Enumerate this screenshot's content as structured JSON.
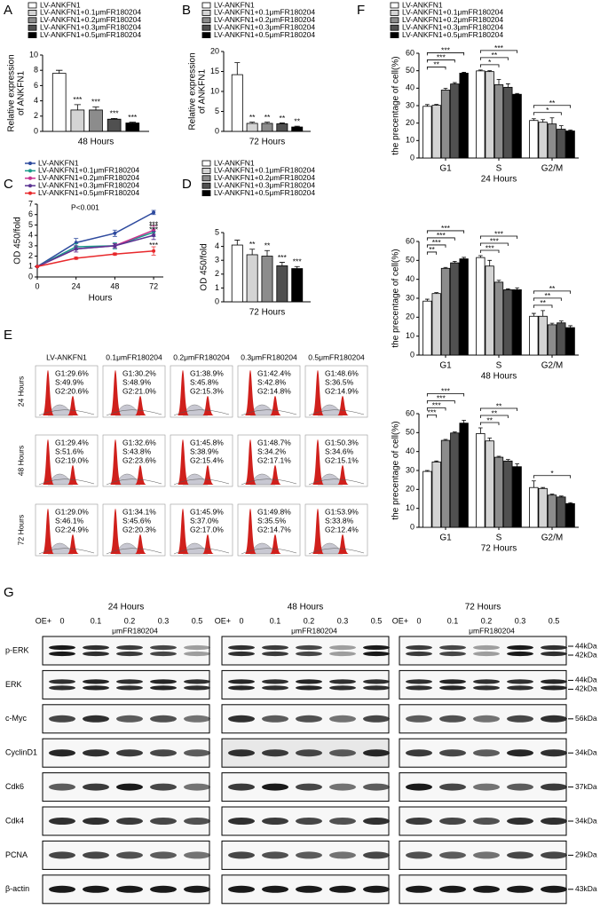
{
  "chart_data": [
    {
      "panel": "A",
      "type": "bar",
      "ylabel": [
        "Relative expression",
        "of ANKFN1"
      ],
      "categories": [
        "48 Hours"
      ],
      "ylim": [
        0,
        10
      ],
      "yticks": [
        0,
        2,
        4,
        6,
        8,
        10
      ],
      "series": [
        {
          "name": "LV-ANKFN1",
          "color": "#ffffff",
          "values": [
            7.6
          ],
          "errors": [
            0.4
          ]
        },
        {
          "name": "LV-ANKFN1+0.1μmFR180204",
          "color": "#d4d4d4",
          "values": [
            2.8
          ],
          "errors": [
            0.7
          ],
          "annotation": "***"
        },
        {
          "name": "LV-ANKFN1+0.2μmFR180204",
          "color": "#8c8c8c",
          "values": [
            2.8
          ],
          "errors": [
            0.4
          ],
          "annotation": "***"
        },
        {
          "name": "LV-ANKFN1+0.3μmFR180204",
          "color": "#505050",
          "values": [
            1.6
          ],
          "errors": [
            0.1
          ],
          "annotation": "***"
        },
        {
          "name": "LV-ANKFN1+0.5μmFR180204",
          "color": "#000000",
          "values": [
            1.1
          ],
          "errors": [
            0.1
          ],
          "annotation": "***"
        }
      ]
    },
    {
      "panel": "B",
      "type": "bar",
      "ylabel": [
        "Relative expression",
        "of ANKFN1"
      ],
      "categories": [
        "72 Hours"
      ],
      "ylim": [
        0,
        20
      ],
      "yticks": [
        0,
        5,
        10,
        15,
        20
      ],
      "series": [
        {
          "name": "LV-ANKFN1",
          "color": "#ffffff",
          "values": [
            14.2
          ],
          "errors": [
            3.0
          ]
        },
        {
          "name": "LV-ANKFN1+0.1μmFR180204",
          "color": "#d4d4d4",
          "values": [
            2.0
          ],
          "errors": [
            0.3
          ],
          "annotation": "**"
        },
        {
          "name": "LV-ANKFN1+0.2μmFR180204",
          "color": "#8c8c8c",
          "values": [
            2.0
          ],
          "errors": [
            0.3
          ],
          "annotation": "**"
        },
        {
          "name": "LV-ANKFN1+0.3μmFR180204",
          "color": "#505050",
          "values": [
            1.9
          ],
          "errors": [
            0.2
          ],
          "annotation": "**"
        },
        {
          "name": "LV-ANKFN1+0.5μmFR180204",
          "color": "#000000",
          "values": [
            1.1
          ],
          "errors": [
            0.2
          ],
          "annotation": "**"
        }
      ]
    },
    {
      "panel": "C",
      "type": "line",
      "ylabel": [
        "OD 450/fold"
      ],
      "xlabel": "Hours",
      "note": "P<0.001",
      "x": [
        0,
        24,
        48,
        72
      ],
      "xlim": [
        0,
        78
      ],
      "xticks": [
        0,
        24,
        48,
        72
      ],
      "ylim": [
        0,
        7
      ],
      "yticks": [
        0,
        1,
        2,
        3,
        4,
        5,
        6,
        7
      ],
      "series": [
        {
          "name": "LV-ANKFN1",
          "color": "#2e4a9e",
          "values": [
            1,
            3.3,
            4.2,
            6.2
          ],
          "errors": [
            0,
            0.4,
            0.3,
            0.2
          ]
        },
        {
          "name": "LV-ANKFN1+0.1μmFR180204",
          "color": "#1a9a8a",
          "values": [
            1,
            2.9,
            3.0,
            4.3
          ],
          "errors": [
            0,
            0.3,
            0.3,
            0.4
          ],
          "annotation": "***"
        },
        {
          "name": "LV-ANKFN1+0.2μmFR180204",
          "color": "#c8338e",
          "values": [
            1,
            2.7,
            3.0,
            4.5
          ],
          "errors": [
            0,
            0.3,
            0.2,
            0.4
          ],
          "annotation": "***"
        },
        {
          "name": "LV-ANKFN1+0.3μmFR180204",
          "color": "#5a3392",
          "values": [
            1,
            2.7,
            3.0,
            4.0
          ],
          "errors": [
            0,
            0.3,
            0.2,
            0.4
          ],
          "annotation": "***"
        },
        {
          "name": "LV-ANKFN1+0.5μmFR180204",
          "color": "#e8282b",
          "values": [
            1,
            1.8,
            2.2,
            2.5
          ],
          "errors": [
            0,
            0.1,
            0.1,
            0.4
          ],
          "annotation": "***"
        }
      ]
    },
    {
      "panel": "D",
      "type": "bar",
      "ylabel": [
        "OD 450/fold"
      ],
      "categories": [
        "72 Hours"
      ],
      "ylim": [
        0,
        5
      ],
      "yticks": [
        0,
        1,
        2,
        3,
        4,
        5
      ],
      "series": [
        {
          "name": "LV-ANKFN1",
          "color": "#ffffff",
          "values": [
            4.1
          ],
          "errors": [
            0.35
          ]
        },
        {
          "name": "LV-ANKFN1+0.1μmFR180204",
          "color": "#d4d4d4",
          "values": [
            3.4
          ],
          "errors": [
            0.4
          ],
          "annotation": "**"
        },
        {
          "name": "LV-ANKFN1+0.2μmFR180204",
          "color": "#8c8c8c",
          "values": [
            3.3
          ],
          "errors": [
            0.4
          ],
          "annotation": "**"
        },
        {
          "name": "LV-ANKFN1+0.3μmFR180204",
          "color": "#505050",
          "values": [
            2.6
          ],
          "errors": [
            0.25
          ],
          "annotation": "***"
        },
        {
          "name": "LV-ANKFN1+0.5μmFR180204",
          "color": "#000000",
          "values": [
            2.4
          ],
          "errors": [
            0.15
          ],
          "annotation": "***"
        }
      ]
    },
    {
      "panel": "F",
      "type": "bar",
      "ylabel": [
        "the precentage of cell(%)"
      ],
      "xlabel": "24 Hours",
      "categories": [
        "G1",
        "S",
        "G2/M"
      ],
      "ylim": [
        0,
        60
      ],
      "yticks": [
        0,
        10,
        20,
        30,
        40,
        50,
        60
      ],
      "significance": [
        [
          "***",
          "***",
          "**"
        ],
        [
          "***",
          "**",
          "*"
        ],
        [
          "**",
          "*"
        ]
      ],
      "series": [
        {
          "name": "LV-ANKFN1",
          "color": "#ffffff",
          "values": [
            29.6,
            49.9,
            21.5
          ],
          "errors": [
            1,
            0.5,
            1
          ]
        },
        {
          "name": "LV-ANKFN1+0.1μmFR180204",
          "color": "#d4d4d4",
          "values": [
            30.2,
            49.5,
            20.5
          ],
          "errors": [
            0.5,
            0.5,
            1.5
          ]
        },
        {
          "name": "LV-ANKFN1+0.2μmFR180204",
          "color": "#8c8c8c",
          "values": [
            38.9,
            42,
            19.5
          ],
          "errors": [
            1,
            3,
            3.5
          ]
        },
        {
          "name": "LV-ANKFN1+0.3μmFR180204",
          "color": "#505050",
          "values": [
            42.4,
            40.5,
            16.5
          ],
          "errors": [
            0.8,
            2,
            2
          ]
        },
        {
          "name": "LV-ANKFN1+0.5μmFR180204",
          "color": "#000000",
          "values": [
            48.6,
            36.5,
            15.5
          ],
          "errors": [
            0.5,
            0.5,
            0.5
          ]
        }
      ]
    },
    {
      "type": "bar",
      "ylabel": [
        "the precentage of cell(%)"
      ],
      "xlabel": "48 Hours",
      "categories": [
        "G1",
        "S",
        "G2/M"
      ],
      "ylim": [
        0,
        60
      ],
      "yticks": [
        0,
        10,
        20,
        30,
        40,
        50,
        60
      ],
      "significance": [
        [
          "***",
          "***",
          "***",
          "**"
        ],
        [
          "***",
          "***",
          "***"
        ],
        [
          "**",
          "**",
          "**"
        ]
      ],
      "series": [
        {
          "color": "#ffffff",
          "values": [
            28.5,
            51.5,
            20.5
          ],
          "errors": [
            1,
            1,
            1.5
          ]
        },
        {
          "color": "#d4d4d4",
          "values": [
            32.5,
            47,
            20.5
          ],
          "errors": [
            0.5,
            3,
            3
          ]
        },
        {
          "color": "#8c8c8c",
          "values": [
            45.8,
            38.5,
            16
          ],
          "errors": [
            0.5,
            1,
            0.8
          ]
        },
        {
          "color": "#505050",
          "values": [
            48.7,
            34.5,
            17
          ],
          "errors": [
            0.8,
            0.5,
            1
          ]
        },
        {
          "color": "#000000",
          "values": [
            50.8,
            34.5,
            14.5
          ],
          "errors": [
            0.8,
            1,
            1
          ]
        }
      ]
    },
    {
      "type": "bar",
      "ylabel": [
        "the precentage of cell(%)"
      ],
      "xlabel": "72 Hours",
      "categories": [
        "G1",
        "S",
        "G2/M"
      ],
      "ylim": [
        0,
        60
      ],
      "yticks": [
        0,
        10,
        20,
        30,
        40,
        50,
        60
      ],
      "significance": [
        [
          "***",
          "***",
          "***",
          "***"
        ],
        [
          "**",
          "**",
          "**"
        ],
        [
          "*"
        ]
      ],
      "series": [
        {
          "color": "#ffffff",
          "values": [
            29.5,
            49.5,
            21
          ],
          "errors": [
            0.5,
            3,
            3.5
          ]
        },
        {
          "color": "#d4d4d4",
          "values": [
            34.5,
            45.6,
            20.5
          ],
          "errors": [
            0.5,
            1.5,
            0.5
          ]
        },
        {
          "color": "#8c8c8c",
          "values": [
            45.9,
            37,
            17
          ],
          "errors": [
            0.5,
            0.5,
            0.5
          ]
        },
        {
          "color": "#505050",
          "values": [
            49.8,
            35,
            16
          ],
          "errors": [
            0.5,
            0.8,
            0.5
          ]
        },
        {
          "color": "#000000",
          "values": [
            55,
            32,
            12.5
          ],
          "errors": [
            1.5,
            1.5,
            0.5
          ]
        }
      ]
    }
  ],
  "flow": {
    "panel": "E",
    "columns": [
      "LV-ANKFN1",
      "0.1μmFR180204",
      "0.2μmFR180204",
      "0.3μmFR180204",
      "0.5μmFR180204"
    ],
    "rows": [
      {
        "label": "24 Hours",
        "cells": [
          [
            "G1:29.6%",
            "S:49.9%",
            "G2:20.6%"
          ],
          [
            "G1:30.2%",
            "S:48.9%",
            "G2:21.0%"
          ],
          [
            "G1:38.9%",
            "S:45.8%",
            "G2:15.3%"
          ],
          [
            "G1:42.4%",
            "S:42.8%",
            "G2:14.8%"
          ],
          [
            "G1:48.6%",
            "S:36.5%",
            "G2:14.9%"
          ]
        ]
      },
      {
        "label": "48 Hours",
        "cells": [
          [
            "G1:29.4%",
            "S:51.6%",
            "G2:19.0%"
          ],
          [
            "G1:32.6%",
            "S:43.8%",
            "G2:23.6%"
          ],
          [
            "G1:45.8%",
            "S:38.9%",
            "G2:15.4%"
          ],
          [
            "G1:48.7%",
            "S:34.2%",
            "G2:17.1%"
          ],
          [
            "G1:50.3%",
            "S:34.6%",
            "G2:15.1%"
          ]
        ]
      },
      {
        "label": "72 Hours",
        "cells": [
          [
            "G1:29.0%",
            "S:46.1%",
            "G2:24.9%"
          ],
          [
            "G1:34.1%",
            "S:45.6%",
            "G2:20.3%"
          ],
          [
            "G1:45.9%",
            "S:37.0%",
            "G2:17.0%"
          ],
          [
            "G1:49.8%",
            "S:35.5%",
            "G2:14.7%"
          ],
          [
            "G1:53.9%",
            "S:33.8%",
            "G2:12.4%"
          ]
        ]
      }
    ]
  },
  "blot": {
    "panel": "G",
    "times": [
      "24 Hours",
      "48 Hours",
      "72 Hours"
    ],
    "oe": "OE+",
    "doses": [
      "0",
      "0.1",
      "0.2",
      "0.3",
      "0.5"
    ],
    "drug": "μmFR180204",
    "rows": [
      {
        "protein": "p-ERK",
        "kda": [
          "44kDa",
          "42kDa"
        ]
      },
      {
        "protein": "ERK",
        "kda": [
          "44kDa",
          "42kDa"
        ]
      },
      {
        "protein": "c-Myc",
        "kda": [
          "56kDa"
        ]
      },
      {
        "protein": "CyclinD1",
        "kda": [
          "34kDa"
        ]
      },
      {
        "protein": "Cdk6",
        "kda": [
          "37kDa"
        ]
      },
      {
        "protein": "Cdk4",
        "kda": [
          "34kDa"
        ]
      },
      {
        "protein": "PCNA",
        "kda": [
          "29kDa"
        ]
      },
      {
        "protein": "β-actin",
        "kda": [
          "43kDa"
        ]
      }
    ]
  }
}
